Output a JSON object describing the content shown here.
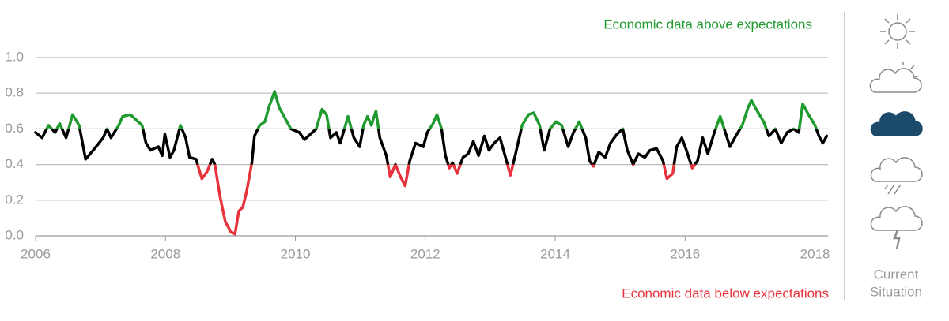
{
  "chart_data": {
    "type": "line",
    "annotations": {
      "above": "Economic data above expectations",
      "below": "Economic data below expectations"
    },
    "x": [
      2006.0,
      2006.1,
      2006.2,
      2006.3,
      2006.37,
      2006.47,
      2006.57,
      2006.67,
      2006.77,
      2006.91,
      2007.04,
      2007.1,
      2007.16,
      2007.28,
      2007.34,
      2007.46,
      2007.58,
      2007.64,
      2007.7,
      2007.77,
      2007.89,
      2007.95,
      2007.99,
      2008.07,
      2008.13,
      2008.23,
      2008.31,
      2008.37,
      2008.47,
      2008.56,
      2008.64,
      2008.72,
      2008.76,
      2008.84,
      2008.92,
      2009.01,
      2009.07,
      2009.13,
      2009.19,
      2009.25,
      2009.33,
      2009.37,
      2009.45,
      2009.53,
      2009.59,
      2009.68,
      2009.75,
      2009.84,
      2009.93,
      2010.06,
      2010.14,
      2010.26,
      2010.32,
      2010.41,
      2010.48,
      2010.54,
      2010.63,
      2010.69,
      2010.81,
      2010.9,
      2010.99,
      2011.05,
      2011.11,
      2011.17,
      2011.24,
      2011.3,
      2011.4,
      2011.46,
      2011.54,
      2011.62,
      2011.69,
      2011.76,
      2011.85,
      2011.97,
      2012.03,
      2012.12,
      2012.18,
      2012.25,
      2012.31,
      2012.37,
      2012.42,
      2012.49,
      2012.58,
      2012.66,
      2012.74,
      2012.82,
      2012.91,
      2012.98,
      2013.06,
      2013.15,
      2013.25,
      2013.31,
      2013.39,
      2013.49,
      2013.59,
      2013.67,
      2013.76,
      2013.83,
      2013.92,
      2014.01,
      2014.1,
      2014.2,
      2014.28,
      2014.37,
      2014.47,
      2014.53,
      2014.59,
      2014.67,
      2014.77,
      2014.85,
      2014.95,
      2015.04,
      2015.11,
      2015.2,
      2015.28,
      2015.38,
      2015.46,
      2015.56,
      2015.66,
      2015.72,
      2015.81,
      2015.87,
      2015.95,
      2016.02,
      2016.11,
      2016.19,
      2016.27,
      2016.35,
      2016.45,
      2016.54,
      2016.62,
      2016.69,
      2016.78,
      2016.88,
      2016.97,
      2017.02,
      2017.11,
      2017.21,
      2017.29,
      2017.39,
      2017.48,
      2017.57,
      2017.67,
      2017.75,
      2017.81,
      2017.9,
      2018.0,
      2018.06,
      2018.12,
      2018.18
    ],
    "values": [
      0.58,
      0.55,
      0.62,
      0.58,
      0.63,
      0.55,
      0.68,
      0.62,
      0.43,
      0.49,
      0.55,
      0.6,
      0.55,
      0.62,
      0.67,
      0.68,
      0.64,
      0.62,
      0.52,
      0.48,
      0.5,
      0.45,
      0.57,
      0.44,
      0.48,
      0.62,
      0.55,
      0.44,
      0.43,
      0.32,
      0.36,
      0.43,
      0.4,
      0.22,
      0.08,
      0.02,
      0.01,
      0.14,
      0.16,
      0.25,
      0.41,
      0.56,
      0.62,
      0.64,
      0.72,
      0.81,
      0.72,
      0.66,
      0.6,
      0.58,
      0.54,
      0.58,
      0.6,
      0.71,
      0.68,
      0.55,
      0.58,
      0.52,
      0.67,
      0.55,
      0.5,
      0.62,
      0.67,
      0.62,
      0.7,
      0.55,
      0.45,
      0.33,
      0.4,
      0.33,
      0.28,
      0.42,
      0.52,
      0.5,
      0.58,
      0.63,
      0.68,
      0.6,
      0.45,
      0.38,
      0.41,
      0.35,
      0.44,
      0.46,
      0.53,
      0.45,
      0.56,
      0.48,
      0.52,
      0.55,
      0.42,
      0.34,
      0.46,
      0.62,
      0.68,
      0.69,
      0.62,
      0.48,
      0.6,
      0.64,
      0.62,
      0.5,
      0.58,
      0.64,
      0.55,
      0.42,
      0.39,
      0.47,
      0.44,
      0.52,
      0.57,
      0.6,
      0.48,
      0.4,
      0.46,
      0.44,
      0.48,
      0.49,
      0.42,
      0.32,
      0.35,
      0.5,
      0.55,
      0.48,
      0.38,
      0.42,
      0.55,
      0.46,
      0.58,
      0.67,
      0.58,
      0.5,
      0.56,
      0.62,
      0.72,
      0.76,
      0.7,
      0.64,
      0.56,
      0.6,
      0.52,
      0.58,
      0.6,
      0.58,
      0.74,
      0.68,
      0.62,
      0.56,
      0.52,
      0.56
    ],
    "color": "#000000",
    "color_above": "#1f9a2e",
    "color_below": "#e8323c",
    "threshold_high": 0.6,
    "threshold_low": 0.4,
    "xlim": [
      2006,
      2018.2
    ],
    "xticks": [
      2006,
      2008,
      2010,
      2012,
      2014,
      2016,
      2018
    ],
    "ylim": [
      0,
      1
    ],
    "yticks": [
      {
        "value": 0,
        "label": "0.0"
      },
      0.2,
      0.4,
      0.6,
      0.8,
      {
        "value": 1,
        "label": "1.0"
      }
    ],
    "grid": true
  },
  "sidebar": {
    "label_lines": [
      "Current",
      "Situation"
    ]
  }
}
